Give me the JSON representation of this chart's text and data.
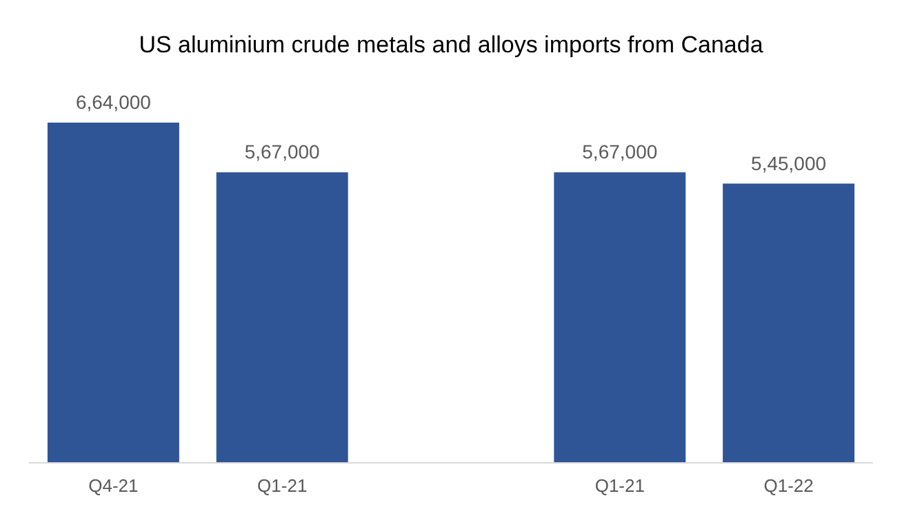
{
  "chart_data": {
    "type": "bar",
    "title": "US aluminium crude metals and alloys imports from Canada",
    "categories": [
      "Q4-21",
      "Q1-21",
      null,
      "Q1-21",
      "Q1-22"
    ],
    "values": [
      664000,
      567000,
      null,
      567000,
      545000
    ],
    "value_labels": [
      "6,64,000",
      "5,67,000",
      null,
      "5,67,000",
      "5,45,000"
    ],
    "color": "#2f5597"
  }
}
